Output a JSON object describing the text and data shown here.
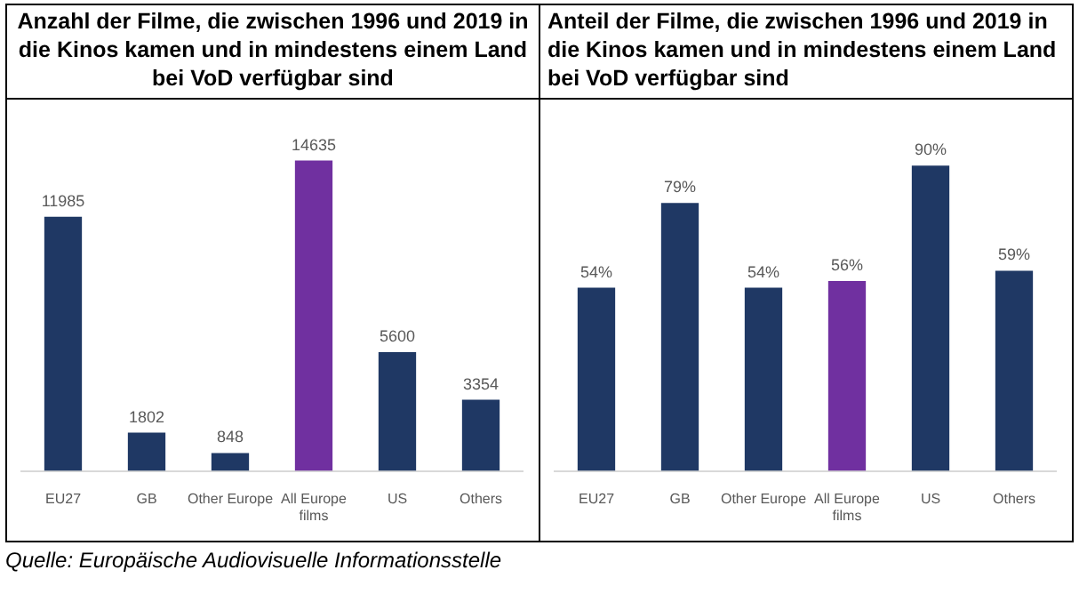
{
  "chart_data": [
    {
      "type": "bar",
      "title": "Anzahl der Filme, die zwischen 1996 und 2019 in die Kinos kamen und in mindestens einem Land bei VoD verfügbar sind",
      "categories": [
        "EU27",
        "GB",
        "Other Europe",
        "All Europe films",
        "US",
        "Others"
      ],
      "values": [
        11985,
        1802,
        848,
        14635,
        5600,
        3354
      ],
      "colors": [
        "#1f3864",
        "#1f3864",
        "#1f3864",
        "#7030a0",
        "#1f3864",
        "#1f3864"
      ],
      "data_labels": true,
      "annotations": [
        "Quelle: Europäische Audiovisuelle Informationsstelle"
      ]
    },
    {
      "type": "bar",
      "title": "Anteil der Filme, die zwischen 1996 und 2019 in die Kinos kamen und in mindestens einem Land bei VoD verfügbar sind",
      "categories": [
        "EU27",
        "GB",
        "Other Europe",
        "All Europe films",
        "US",
        "Others"
      ],
      "values": [
        54,
        79,
        54,
        56,
        90,
        59
      ],
      "colors": [
        "#1f3864",
        "#1f3864",
        "#1f3864",
        "#7030a0",
        "#1f3864",
        "#1f3864"
      ],
      "value_labels": [
        "54%",
        "79%",
        "54%",
        "56%",
        "90%",
        "59%"
      ]
    }
  ]
}
